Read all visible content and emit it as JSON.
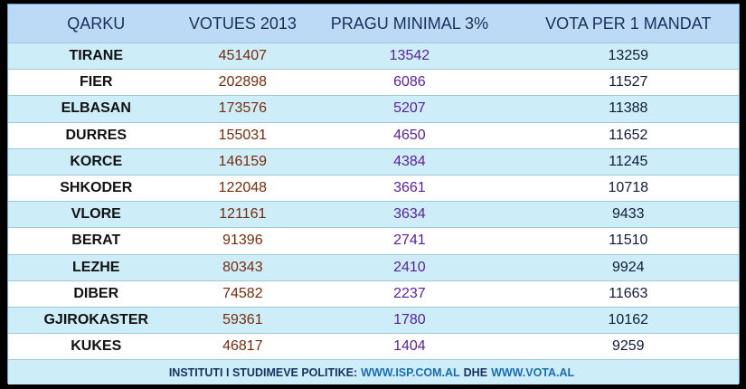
{
  "header": [
    "QARKU",
    "VOTUES 2013",
    "PRAGU MINIMAL 3%",
    "VOTA PER 1 MANDAT"
  ],
  "rows": [
    [
      "TIRANE",
      "451407",
      "13542",
      "13259"
    ],
    [
      "FIER",
      "202898",
      "6086",
      "11527"
    ],
    [
      "ELBASAN",
      "173576",
      "5207",
      "11388"
    ],
    [
      "DURRES",
      "155031",
      "4650",
      "11652"
    ],
    [
      "KORCE",
      "146159",
      "4384",
      "11245"
    ],
    [
      "SHKODER",
      "122048",
      "3661",
      "10718"
    ],
    [
      "VLORE",
      "121161",
      "3634",
      "9433"
    ],
    [
      "BERAT",
      "91396",
      "2741",
      "11510"
    ],
    [
      "LEZHE",
      "80343",
      "2410",
      "9924"
    ],
    [
      "DIBER",
      "74582",
      "2237",
      "11663"
    ],
    [
      "GJIROKASTER",
      "59361",
      "1780",
      "10162"
    ],
    [
      "KUKES",
      "46817",
      "1404",
      "9259"
    ]
  ],
  "footer": {
    "prefix": "INSTITUTI I STUDIMEVE POLITIKE:",
    "link1": "WWW.ISP.COM.AL",
    "middle": "DHE",
    "link2": "WWW.VOTA.AL"
  },
  "colors": {
    "header_bg": "#bcd9f5",
    "row_alt_bg": "#cdeef8",
    "votes": "#7a2a0a",
    "threshold": "#5a1e9c",
    "link": "#1a6bb8"
  }
}
